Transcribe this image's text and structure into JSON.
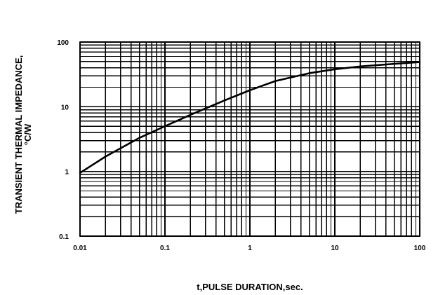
{
  "chart_data": {
    "type": "line",
    "title": "",
    "xlabel": "t,PULSE DURATION,sec.",
    "ylabel_line1": "TRANSIENT THERMAL IMPEDANCE,",
    "ylabel_line2": "°C/W",
    "x_scale": "log",
    "y_scale": "log",
    "xlim": [
      0.01,
      100
    ],
    "ylim": [
      0.1,
      100
    ],
    "grid": true,
    "x_ticks": [
      {
        "value": 0.01,
        "label": "0.01"
      },
      {
        "value": 0.1,
        "label": "0.1"
      },
      {
        "value": 1,
        "label": "1"
      },
      {
        "value": 10,
        "label": "10"
      },
      {
        "value": 100,
        "label": "100"
      }
    ],
    "y_ticks": [
      {
        "value": 0.1,
        "label": "0.1"
      },
      {
        "value": 1,
        "label": "1"
      },
      {
        "value": 10,
        "label": "10"
      },
      {
        "value": 100,
        "label": "100"
      }
    ],
    "series": [
      {
        "x": [
          0.01,
          0.02,
          0.05,
          0.1,
          0.2,
          0.5,
          1,
          2,
          5,
          10,
          20,
          50,
          100
        ],
        "y": [
          0.95,
          1.7,
          3.3,
          5.0,
          7.5,
          12.5,
          18,
          25,
          33,
          38,
          42,
          46,
          49
        ]
      }
    ]
  }
}
